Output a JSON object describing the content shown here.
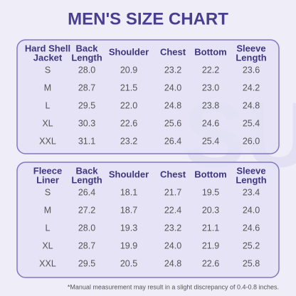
{
  "title": "MEN'S SIZE CHART",
  "watermark": "SUN",
  "tables": [
    {
      "headers": [
        [
          "Hard Shell",
          "Jacket"
        ],
        [
          "Back",
          "Length"
        ],
        [
          "Shoulder"
        ],
        [
          "Chest"
        ],
        [
          "Bottom"
        ],
        [
          "Sleeve",
          "Length"
        ]
      ],
      "rows": [
        [
          "S",
          "28.0",
          "20.9",
          "23.2",
          "22.2",
          "23.6"
        ],
        [
          "M",
          "28.7",
          "21.5",
          "24.0",
          "23.0",
          "24.2"
        ],
        [
          "L",
          "29.5",
          "22.0",
          "24.8",
          "23.8",
          "24.8"
        ],
        [
          "XL",
          "30.3",
          "22.6",
          "25.6",
          "24.6",
          "25.4"
        ],
        [
          "XXL",
          "31.1",
          "23.2",
          "26.4",
          "25.4",
          "26.0"
        ]
      ]
    },
    {
      "headers": [
        [
          "Fleece",
          "Liner"
        ],
        [
          "Back",
          "Length"
        ],
        [
          "Shoulder"
        ],
        [
          "Chest"
        ],
        [
          "Bottom"
        ],
        [
          "Sleeve",
          "Length"
        ]
      ],
      "rows": [
        [
          "S",
          "26.4",
          "18.1",
          "21.7",
          "19.5",
          "23.4"
        ],
        [
          "M",
          "27.2",
          "18.7",
          "22.4",
          "20.3",
          "24.0"
        ],
        [
          "L",
          "28.0",
          "19.3",
          "23.2",
          "21.1",
          "24.6"
        ],
        [
          "XL",
          "28.7",
          "19.9",
          "24.0",
          "21.9",
          "25.2"
        ],
        [
          "XXL",
          "29.5",
          "20.5",
          "24.8",
          "22.6",
          "25.8"
        ]
      ]
    }
  ],
  "footnote": "*Manual measurement may result in a slight discrepancy of 0.4-0.8 inches."
}
